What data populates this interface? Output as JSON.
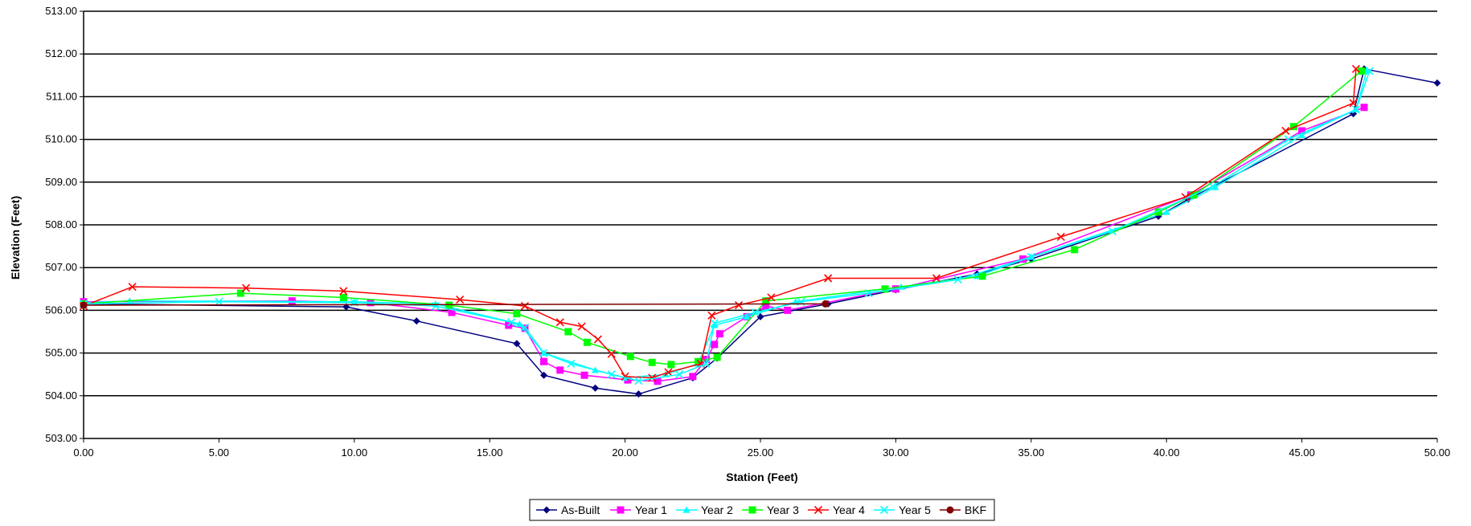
{
  "chart_data": {
    "type": "line",
    "title": "",
    "xlabel": "Station (Feet)",
    "ylabel": "Elevation (Feet)",
    "xlim": [
      0,
      50
    ],
    "ylim": [
      503,
      513
    ],
    "x_ticks": [
      "0.00",
      "5.00",
      "10.00",
      "15.00",
      "20.00",
      "25.00",
      "30.00",
      "35.00",
      "40.00",
      "45.00",
      "50.00"
    ],
    "y_ticks": [
      "503.00",
      "504.00",
      "505.00",
      "506.00",
      "507.00",
      "508.00",
      "509.00",
      "510.00",
      "511.00",
      "512.00",
      "513.00"
    ],
    "grid": "horizontal",
    "legend_position": "bottom",
    "series": [
      {
        "name": "As-Built",
        "color": "#000080",
        "marker": "diamond",
        "points": [
          [
            0,
            506.15
          ],
          [
            9.7,
            506.08
          ],
          [
            12.3,
            505.75
          ],
          [
            16,
            505.22
          ],
          [
            17,
            504.48
          ],
          [
            18.9,
            504.18
          ],
          [
            20.5,
            504.04
          ],
          [
            22.5,
            504.42
          ],
          [
            23.4,
            504.88
          ],
          [
            25,
            505.85
          ],
          [
            27.5,
            506.15
          ],
          [
            30,
            506.48
          ],
          [
            33,
            506.85
          ],
          [
            35,
            507.2
          ],
          [
            39.7,
            508.2
          ],
          [
            40.8,
            508.6
          ],
          [
            46.9,
            510.6
          ],
          [
            47.3,
            511.65
          ],
          [
            50,
            511.32
          ]
        ]
      },
      {
        "name": "Year 1",
        "color": "#FF00FF",
        "marker": "square",
        "points": [
          [
            0,
            506.2
          ],
          [
            7.7,
            506.22
          ],
          [
            10.6,
            506.18
          ],
          [
            13.6,
            505.95
          ],
          [
            15.7,
            505.65
          ],
          [
            16.3,
            505.58
          ],
          [
            17,
            504.8
          ],
          [
            17.6,
            504.6
          ],
          [
            18.5,
            504.48
          ],
          [
            20.1,
            504.37
          ],
          [
            21.2,
            504.34
          ],
          [
            22.5,
            504.45
          ],
          [
            23,
            504.85
          ],
          [
            23.3,
            505.2
          ],
          [
            23.5,
            505.45
          ],
          [
            24.5,
            505.85
          ],
          [
            25.2,
            506.1
          ],
          [
            26,
            506
          ],
          [
            30,
            506.5
          ],
          [
            34.7,
            507.2
          ],
          [
            40.9,
            508.7
          ],
          [
            45,
            510.2
          ],
          [
            47.3,
            510.75
          ]
        ]
      },
      {
        "name": "Year 2",
        "color": "#00FFFF",
        "marker": "triangle",
        "points": [
          [
            0,
            506.18
          ],
          [
            1.7,
            506.22
          ],
          [
            10,
            506.2
          ],
          [
            13,
            506.15
          ],
          [
            16.1,
            505.68
          ],
          [
            17,
            505
          ],
          [
            18.9,
            504.6
          ],
          [
            20,
            504.42
          ],
          [
            21.5,
            504.5
          ],
          [
            22.7,
            504.75
          ],
          [
            23.3,
            505.65
          ],
          [
            24.5,
            505.85
          ],
          [
            26.3,
            506.2
          ],
          [
            30.2,
            506.55
          ],
          [
            33,
            506.8
          ],
          [
            35,
            507.25
          ],
          [
            40,
            508.3
          ],
          [
            41.8,
            508.88
          ],
          [
            45,
            510.1
          ],
          [
            47,
            510.7
          ],
          [
            47.4,
            511.62
          ]
        ]
      },
      {
        "name": "Year 3",
        "color": "#00FF00",
        "marker": "square",
        "points": [
          [
            0,
            506.15
          ],
          [
            5.8,
            506.4
          ],
          [
            9.6,
            506.3
          ],
          [
            13.5,
            506.12
          ],
          [
            16,
            505.92
          ],
          [
            17.9,
            505.5
          ],
          [
            18.6,
            505.25
          ],
          [
            20.2,
            504.92
          ],
          [
            21,
            504.78
          ],
          [
            21.7,
            504.73
          ],
          [
            22.7,
            504.8
          ],
          [
            23.4,
            504.9
          ],
          [
            25.2,
            506.22
          ],
          [
            29.6,
            506.5
          ],
          [
            33.2,
            506.8
          ],
          [
            36.6,
            507.42
          ],
          [
            39.7,
            508.3
          ],
          [
            41,
            508.7
          ],
          [
            44.7,
            510.3
          ],
          [
            47.2,
            511.6
          ]
        ]
      },
      {
        "name": "Year 4",
        "color": "#FF0000",
        "marker": "x",
        "points": [
          [
            0,
            506.1
          ],
          [
            1.8,
            506.55
          ],
          [
            6,
            506.52
          ],
          [
            9.6,
            506.45
          ],
          [
            13.9,
            506.25
          ],
          [
            16.3,
            506.1
          ],
          [
            17.6,
            505.72
          ],
          [
            18.4,
            505.62
          ],
          [
            19,
            505.32
          ],
          [
            19.5,
            504.98
          ],
          [
            20,
            504.45
          ],
          [
            21,
            504.42
          ],
          [
            21.6,
            504.55
          ],
          [
            22.8,
            504.75
          ],
          [
            23.2,
            505.88
          ],
          [
            24.2,
            506.12
          ],
          [
            25.4,
            506.3
          ],
          [
            27.5,
            506.75
          ],
          [
            31.5,
            506.75
          ],
          [
            36.1,
            507.72
          ],
          [
            40.7,
            508.65
          ],
          [
            44.4,
            510.2
          ],
          [
            46.9,
            510.85
          ],
          [
            47,
            511.65
          ]
        ]
      },
      {
        "name": "Year 5",
        "color": "#00FFFF",
        "marker": "x",
        "points": [
          [
            0,
            506.15
          ],
          [
            5,
            506.2
          ],
          [
            10,
            506.18
          ],
          [
            13,
            506.1
          ],
          [
            15.8,
            505.72
          ],
          [
            16.3,
            505.6
          ],
          [
            17,
            505
          ],
          [
            18,
            504.75
          ],
          [
            19.5,
            504.5
          ],
          [
            20.5,
            504.35
          ],
          [
            22,
            504.5
          ],
          [
            23,
            504.75
          ],
          [
            23.3,
            505.7
          ],
          [
            24.8,
            505.95
          ],
          [
            26.5,
            506.2
          ],
          [
            29,
            506.4
          ],
          [
            32.3,
            506.72
          ],
          [
            35,
            507.25
          ],
          [
            38,
            507.85
          ],
          [
            41.7,
            508.9
          ],
          [
            44.5,
            510
          ],
          [
            47,
            510.7
          ],
          [
            47.5,
            511.6
          ]
        ]
      },
      {
        "name": "BKF",
        "color": "#800000",
        "marker": "circle",
        "points": [
          [
            0,
            506.12
          ],
          [
            27.4,
            506.15
          ]
        ]
      }
    ]
  }
}
